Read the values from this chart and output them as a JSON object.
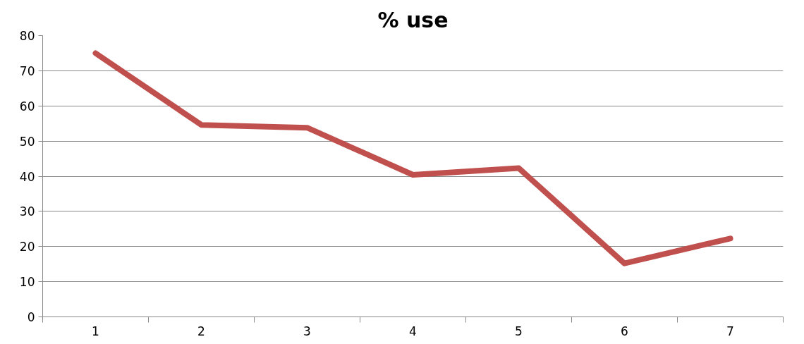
{
  "chart_data": {
    "type": "line",
    "title": "% use",
    "categories": [
      "1",
      "2",
      "3",
      "4",
      "5",
      "6",
      "7"
    ],
    "series": [
      {
        "color": "#c0504d",
        "values": [
          75.0,
          54.6,
          53.8,
          40.4,
          42.3,
          15.2,
          22.3
        ]
      }
    ],
    "ylim": [
      0,
      80
    ],
    "yticks": [
      0,
      10,
      20,
      30,
      40,
      50,
      60,
      70,
      80
    ],
    "grid": "y",
    "marker": "none",
    "line_style": "solid"
  }
}
